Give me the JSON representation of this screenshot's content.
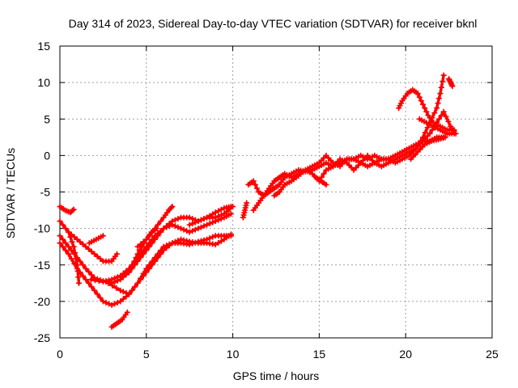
{
  "chart_data": {
    "type": "scatter",
    "title": "Day 314 of 2023, Sidereal Day-to-day VTEC variation (SDTVAR) for receiver bknl",
    "xlabel": "GPS time / hours",
    "ylabel": "SDTVAR / TECUs",
    "xlim": [
      0,
      25
    ],
    "ylim": [
      -25,
      15
    ],
    "xticks": [
      0,
      5,
      10,
      15,
      20,
      25
    ],
    "yticks": [
      -25,
      -20,
      -15,
      -10,
      -5,
      0,
      5,
      10,
      15
    ],
    "grid": true,
    "marker": "+",
    "color": "#ff0000",
    "series": [
      {
        "name": "arc-1",
        "points": [
          [
            0.0,
            -7.0
          ],
          [
            0.3,
            -7.5
          ],
          [
            0.6,
            -7.8
          ],
          [
            0.8,
            -7.4
          ]
        ]
      },
      {
        "name": "arc-2",
        "points": [
          [
            0.0,
            -9.0
          ],
          [
            0.5,
            -10.5
          ],
          [
            1.0,
            -11.5
          ],
          [
            1.5,
            -12.5
          ],
          [
            2.0,
            -13.5
          ],
          [
            2.5,
            -14.5
          ],
          [
            3.0,
            -14.5
          ],
          [
            3.3,
            -13.5
          ]
        ]
      },
      {
        "name": "arc-3",
        "points": [
          [
            0.0,
            -11.0
          ],
          [
            0.5,
            -12.5
          ],
          [
            1.0,
            -14.0
          ],
          [
            1.5,
            -15.5
          ],
          [
            2.0,
            -16.8
          ],
          [
            2.5,
            -17.2
          ],
          [
            3.0,
            -17.5
          ],
          [
            3.5,
            -17.0
          ],
          [
            4.0,
            -16.0
          ],
          [
            4.5,
            -14.5
          ],
          [
            5.0,
            -13.0
          ],
          [
            5.5,
            -11.5
          ],
          [
            6.0,
            -10.0
          ],
          [
            6.5,
            -9.0
          ],
          [
            7.0,
            -8.5
          ],
          [
            7.5,
            -8.5
          ],
          [
            8.0,
            -9.0
          ],
          [
            8.5,
            -8.5
          ],
          [
            9.0,
            -7.8
          ],
          [
            9.5,
            -7.2
          ],
          [
            9.9,
            -7.0
          ]
        ]
      },
      {
        "name": "arc-4",
        "points": [
          [
            0.0,
            -12.0
          ],
          [
            0.5,
            -13.5
          ],
          [
            1.0,
            -15.5
          ],
          [
            1.5,
            -17.0
          ],
          [
            2.0,
            -18.5
          ],
          [
            2.5,
            -20.0
          ],
          [
            3.0,
            -20.5
          ],
          [
            3.5,
            -20.0
          ],
          [
            4.0,
            -19.0
          ],
          [
            4.5,
            -17.5
          ],
          [
            5.0,
            -16.0
          ],
          [
            5.5,
            -14.5
          ],
          [
            6.0,
            -13.0
          ],
          [
            6.5,
            -12.0
          ],
          [
            7.0,
            -11.5
          ],
          [
            7.5,
            -11.8
          ],
          [
            8.0,
            -12.0
          ],
          [
            8.5,
            -12.0
          ],
          [
            9.0,
            -12.2
          ],
          [
            9.5,
            -11.5
          ],
          [
            9.9,
            -10.8
          ]
        ]
      },
      {
        "name": "arc-5",
        "points": [
          [
            0.5,
            -10.5
          ],
          [
            0.8,
            -12.5
          ],
          [
            1.0,
            -15.0
          ],
          [
            1.1,
            -17.5
          ]
        ]
      },
      {
        "name": "arc-6",
        "points": [
          [
            1.7,
            -12.0
          ],
          [
            2.1,
            -11.5
          ],
          [
            2.5,
            -11.0
          ]
        ]
      },
      {
        "name": "arc-7",
        "points": [
          [
            1.8,
            -17.0
          ],
          [
            2.5,
            -17.3
          ],
          [
            3.0,
            -17.0
          ],
          [
            3.5,
            -16.5
          ],
          [
            4.0,
            -15.5
          ],
          [
            4.5,
            -14.0
          ],
          [
            5.0,
            -12.5
          ],
          [
            5.5,
            -11.0
          ],
          [
            6.0,
            -10.0
          ],
          [
            6.5,
            -9.5
          ],
          [
            7.0,
            -10.0
          ],
          [
            7.5,
            -10.5
          ],
          [
            8.0,
            -10.0
          ],
          [
            8.5,
            -9.5
          ],
          [
            9.0,
            -9.0
          ],
          [
            9.5,
            -8.5
          ],
          [
            9.9,
            -8.0
          ]
        ]
      },
      {
        "name": "arc-8",
        "points": [
          [
            2.8,
            -17.5
          ],
          [
            3.5,
            -18.5
          ],
          [
            4.0,
            -19.0
          ],
          [
            4.5,
            -17.5
          ],
          [
            5.0,
            -15.5
          ],
          [
            5.5,
            -14.0
          ],
          [
            6.0,
            -12.5
          ],
          [
            6.5,
            -12.0
          ],
          [
            7.0,
            -12.0
          ],
          [
            7.5,
            -12.2
          ],
          [
            8.0,
            -11.8
          ],
          [
            8.5,
            -11.5
          ],
          [
            9.0,
            -11.0
          ],
          [
            9.5,
            -11.0
          ],
          [
            9.9,
            -11.0
          ]
        ]
      },
      {
        "name": "arc-9",
        "points": [
          [
            3.0,
            -23.5
          ],
          [
            3.3,
            -23.0
          ],
          [
            3.6,
            -22.5
          ],
          [
            3.9,
            -21.5
          ]
        ]
      },
      {
        "name": "arc-10",
        "points": [
          [
            4.0,
            -16.0
          ],
          [
            4.3,
            -14.5
          ],
          [
            4.6,
            -13.0
          ],
          [
            5.0,
            -11.5
          ],
          [
            5.3,
            -10.5
          ],
          [
            5.6,
            -10.0
          ]
        ]
      },
      {
        "name": "arc-11",
        "points": [
          [
            4.5,
            -12.5
          ],
          [
            5.0,
            -11.5
          ],
          [
            5.5,
            -10.0
          ],
          [
            6.0,
            -8.5
          ],
          [
            6.3,
            -7.5
          ],
          [
            6.5,
            -7.0
          ]
        ]
      },
      {
        "name": "arc-12",
        "points": [
          [
            7.5,
            -9.5
          ],
          [
            8.0,
            -9.0
          ],
          [
            8.5,
            -8.5
          ],
          [
            9.0,
            -8.5
          ],
          [
            9.5,
            -8.0
          ],
          [
            10.0,
            -7.0
          ]
        ]
      },
      {
        "name": "arc-13",
        "points": [
          [
            10.6,
            -8.5
          ],
          [
            10.7,
            -7.5
          ],
          [
            10.8,
            -6.5
          ]
        ]
      },
      {
        "name": "arc-14",
        "points": [
          [
            10.9,
            -4.0
          ],
          [
            11.2,
            -3.5
          ],
          [
            11.5,
            -5.0
          ],
          [
            11.8,
            -5.5
          ],
          [
            12.1,
            -5.0
          ],
          [
            12.4,
            -4.5
          ],
          [
            12.7,
            -4.0
          ],
          [
            13.0,
            -3.0
          ],
          [
            13.4,
            -2.5
          ],
          [
            13.8,
            -2.0
          ],
          [
            14.2,
            -2.2
          ],
          [
            14.6,
            -2.0
          ],
          [
            15.0,
            -1.5
          ],
          [
            15.4,
            -1.0
          ],
          [
            15.8,
            -1.5
          ],
          [
            16.2,
            -1.0
          ],
          [
            16.6,
            -0.5
          ],
          [
            17.0,
            -0.5
          ],
          [
            17.4,
            0.0
          ],
          [
            17.8,
            -0.5
          ],
          [
            18.2,
            0.0
          ],
          [
            18.6,
            -0.5
          ],
          [
            19.0,
            -0.5
          ],
          [
            19.4,
            0.0
          ],
          [
            19.8,
            0.5
          ],
          [
            20.2,
            1.0
          ],
          [
            20.6,
            1.5
          ],
          [
            21.0,
            2.0
          ],
          [
            21.4,
            2.0
          ],
          [
            21.8,
            2.5
          ],
          [
            22.2,
            2.5
          ]
        ]
      },
      {
        "name": "arc-15",
        "points": [
          [
            11.2,
            -7.5
          ],
          [
            11.5,
            -6.5
          ],
          [
            11.8,
            -5.5
          ],
          [
            12.1,
            -4.5
          ],
          [
            12.4,
            -3.5
          ],
          [
            12.7,
            -3.0
          ],
          [
            13.0,
            -2.5
          ],
          [
            13.4,
            -3.0
          ],
          [
            13.8,
            -2.5
          ],
          [
            14.2,
            -2.0
          ],
          [
            14.6,
            -2.5
          ],
          [
            15.0,
            -3.5
          ],
          [
            15.4,
            -2.0
          ],
          [
            15.8,
            -1.5
          ],
          [
            16.2,
            -0.5
          ],
          [
            16.6,
            -1.0
          ],
          [
            17.0,
            -2.0
          ],
          [
            17.4,
            -1.0
          ],
          [
            17.8,
            0.0
          ],
          [
            18.2,
            -1.0
          ],
          [
            18.6,
            -1.5
          ],
          [
            19.0,
            -1.0
          ],
          [
            19.4,
            -0.5
          ],
          [
            19.8,
            0.0
          ],
          [
            20.2,
            0.5
          ],
          [
            20.6,
            1.0
          ],
          [
            21.0,
            2.0
          ],
          [
            21.4,
            3.0
          ],
          [
            21.8,
            4.5
          ],
          [
            22.2,
            6.0
          ],
          [
            22.6,
            4.0
          ],
          [
            22.9,
            3.0
          ]
        ]
      },
      {
        "name": "arc-16",
        "points": [
          [
            12.4,
            -5.5
          ],
          [
            12.7,
            -5.0
          ],
          [
            13.0,
            -4.0
          ],
          [
            13.4,
            -3.5
          ],
          [
            13.8,
            -2.8
          ],
          [
            14.2,
            -2.0
          ],
          [
            14.6,
            -1.5
          ],
          [
            15.0,
            -1.0
          ],
          [
            15.4,
            0.0
          ],
          [
            15.8,
            -1.0
          ],
          [
            16.2,
            -1.5
          ],
          [
            16.6,
            -0.5
          ],
          [
            17.0,
            -0.5
          ],
          [
            17.4,
            -1.0
          ],
          [
            17.8,
            -1.5
          ],
          [
            18.2,
            -1.0
          ],
          [
            18.6,
            -0.5
          ],
          [
            19.0,
            -0.5
          ],
          [
            19.4,
            -1.0
          ],
          [
            19.8,
            -0.5
          ],
          [
            20.2,
            0.0
          ],
          [
            20.6,
            1.0
          ],
          [
            21.0,
            2.5
          ],
          [
            21.4,
            4.5
          ],
          [
            21.8,
            6.5
          ],
          [
            22.0,
            8.5
          ],
          [
            22.2,
            11.0
          ]
        ]
      },
      {
        "name": "arc-17",
        "points": [
          [
            14.8,
            -3.0
          ],
          [
            15.1,
            -3.5
          ],
          [
            15.4,
            -4.0
          ]
        ]
      },
      {
        "name": "arc-18",
        "points": [
          [
            19.6,
            6.5
          ],
          [
            19.8,
            7.5
          ],
          [
            20.1,
            8.5
          ],
          [
            20.4,
            9.0
          ],
          [
            20.7,
            8.5
          ],
          [
            21.0,
            7.0
          ],
          [
            21.3,
            5.5
          ],
          [
            21.6,
            4.5
          ],
          [
            22.0,
            4.0
          ],
          [
            22.4,
            3.5
          ],
          [
            22.8,
            3.5
          ]
        ]
      },
      {
        "name": "arc-19",
        "points": [
          [
            20.3,
            -0.5
          ],
          [
            20.7,
            0.5
          ],
          [
            21.1,
            1.5
          ],
          [
            21.5,
            2.0
          ],
          [
            21.9,
            2.2
          ],
          [
            22.3,
            2.5
          ]
        ]
      },
      {
        "name": "arc-20",
        "points": [
          [
            20.8,
            5.0
          ],
          [
            21.2,
            4.5
          ],
          [
            21.6,
            4.0
          ],
          [
            22.0,
            3.5
          ],
          [
            22.4,
            3.0
          ],
          [
            22.8,
            3.0
          ]
        ]
      },
      {
        "name": "arc-21",
        "points": [
          [
            22.5,
            10.5
          ],
          [
            22.6,
            10.0
          ],
          [
            22.7,
            9.5
          ]
        ]
      }
    ]
  }
}
